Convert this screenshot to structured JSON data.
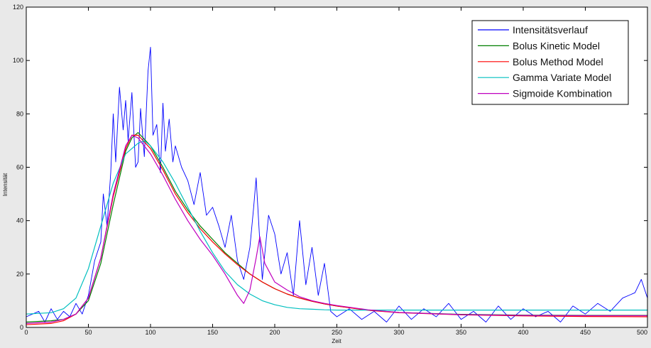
{
  "chart_data": {
    "type": "line",
    "title": "",
    "xlabel": "Zeit",
    "ylabel": "Intensität",
    "xlim": [
      0,
      500
    ],
    "ylim": [
      0,
      120
    ],
    "xticks": [
      0,
      50,
      100,
      150,
      200,
      250,
      300,
      350,
      400,
      450,
      500
    ],
    "yticks": [
      0,
      20,
      40,
      60,
      80,
      100,
      120
    ],
    "grid": false,
    "legend_position": "top-right",
    "colors": {
      "background": "#e9e9e9",
      "plot_area": "#ffffff",
      "axis": "#000000"
    },
    "series": [
      {
        "name": "Intensitätsverlauf",
        "color": "#0000ff",
        "x": [
          0,
          10,
          15,
          20,
          25,
          30,
          35,
          40,
          45,
          50,
          55,
          60,
          62,
          65,
          68,
          70,
          72,
          75,
          78,
          80,
          82,
          85,
          88,
          90,
          92,
          95,
          98,
          100,
          102,
          105,
          108,
          110,
          112,
          115,
          118,
          120,
          125,
          130,
          135,
          140,
          145,
          150,
          155,
          160,
          165,
          170,
          175,
          180,
          183,
          185,
          188,
          190,
          195,
          200,
          205,
          210,
          215,
          220,
          225,
          230,
          235,
          240,
          245,
          250,
          260,
          270,
          280,
          290,
          300,
          310,
          320,
          330,
          340,
          350,
          360,
          370,
          380,
          390,
          400,
          410,
          420,
          430,
          440,
          450,
          460,
          470,
          480,
          490,
          495,
          500
        ],
        "y": [
          4,
          6,
          2,
          7,
          3,
          6,
          4,
          9,
          5,
          12,
          25,
          32,
          50,
          38,
          58,
          80,
          62,
          90,
          74,
          85,
          70,
          88,
          60,
          62,
          82,
          64,
          96,
          105,
          72,
          76,
          58,
          84,
          66,
          78,
          62,
          68,
          60,
          55,
          46,
          58,
          42,
          45,
          38,
          30,
          42,
          25,
          18,
          30,
          45,
          56,
          32,
          18,
          42,
          35,
          20,
          28,
          12,
          40,
          16,
          30,
          12,
          24,
          6,
          4,
          7,
          3,
          6,
          2,
          8,
          3,
          7,
          4,
          9,
          3,
          6,
          2,
          8,
          3,
          7,
          4,
          6,
          2,
          8,
          5,
          9,
          6,
          11,
          13,
          18,
          11
        ]
      },
      {
        "name": "Bolus Kinetic Model",
        "color": "#007f00",
        "x": [
          0,
          20,
          30,
          40,
          50,
          60,
          70,
          80,
          85,
          90,
          100,
          110,
          120,
          130,
          140,
          150,
          160,
          170,
          180,
          190,
          200,
          210,
          220,
          230,
          240,
          250,
          275,
          300,
          350,
          400,
          450,
          500
        ],
        "y": [
          2,
          2.5,
          3,
          5,
          10,
          24,
          46,
          66,
          71,
          73,
          68,
          60,
          51,
          44,
          38,
          33,
          28,
          24,
          20,
          17,
          14.5,
          12.5,
          11,
          9.8,
          8.8,
          8,
          6.5,
          5.6,
          4.9,
          4.6,
          4.5,
          4.5
        ]
      },
      {
        "name": "Bolus Method Model",
        "color": "#ff0000",
        "x": [
          0,
          20,
          30,
          40,
          50,
          60,
          70,
          80,
          85,
          90,
          100,
          110,
          120,
          130,
          140,
          150,
          160,
          170,
          180,
          190,
          200,
          210,
          220,
          230,
          240,
          250,
          275,
          300,
          350,
          400,
          450,
          500
        ],
        "y": [
          1,
          1.5,
          2.5,
          5,
          11,
          26,
          49,
          67,
          72,
          72,
          67,
          59,
          50,
          43,
          37,
          32,
          27.5,
          23.5,
          20,
          17,
          14.5,
          12.5,
          11,
          9.8,
          8.8,
          8,
          6.4,
          5.5,
          4.7,
          4.3,
          4.1,
          4
        ]
      },
      {
        "name": "Gamma Variate Model",
        "color": "#00bfbf",
        "x": [
          0,
          20,
          30,
          40,
          50,
          60,
          70,
          80,
          90,
          95,
          100,
          110,
          120,
          130,
          140,
          150,
          160,
          170,
          180,
          190,
          200,
          210,
          220,
          230,
          240,
          250,
          275,
          300,
          350,
          400,
          450,
          500
        ],
        "y": [
          5,
          5.5,
          7,
          11,
          22,
          38,
          54,
          65,
          69,
          70,
          68,
          62,
          54,
          45,
          36,
          28,
          21,
          16,
          12.5,
          10,
          8.5,
          7.5,
          7,
          6.8,
          6.6,
          6.5,
          6.5,
          6.5,
          6.5,
          6.5,
          6.5,
          6.5
        ]
      },
      {
        "name": "Sigmoide Kombination",
        "color": "#bf00bf",
        "x": [
          0,
          20,
          30,
          40,
          50,
          60,
          70,
          80,
          85,
          90,
          100,
          110,
          120,
          130,
          140,
          150,
          160,
          170,
          175,
          180,
          185,
          188,
          192,
          200,
          210,
          220,
          230,
          240,
          250,
          275,
          300,
          350,
          400,
          450,
          500
        ],
        "y": [
          1.5,
          2,
          3,
          5,
          11,
          26,
          50,
          68,
          72,
          71,
          65,
          57,
          48,
          40,
          33,
          27,
          20,
          12,
          9,
          14,
          26,
          34,
          24,
          17,
          14,
          11.5,
          10,
          9,
          8.2,
          6.6,
          5.6,
          4.8,
          4.5,
          4.4,
          4.4
        ]
      }
    ]
  }
}
